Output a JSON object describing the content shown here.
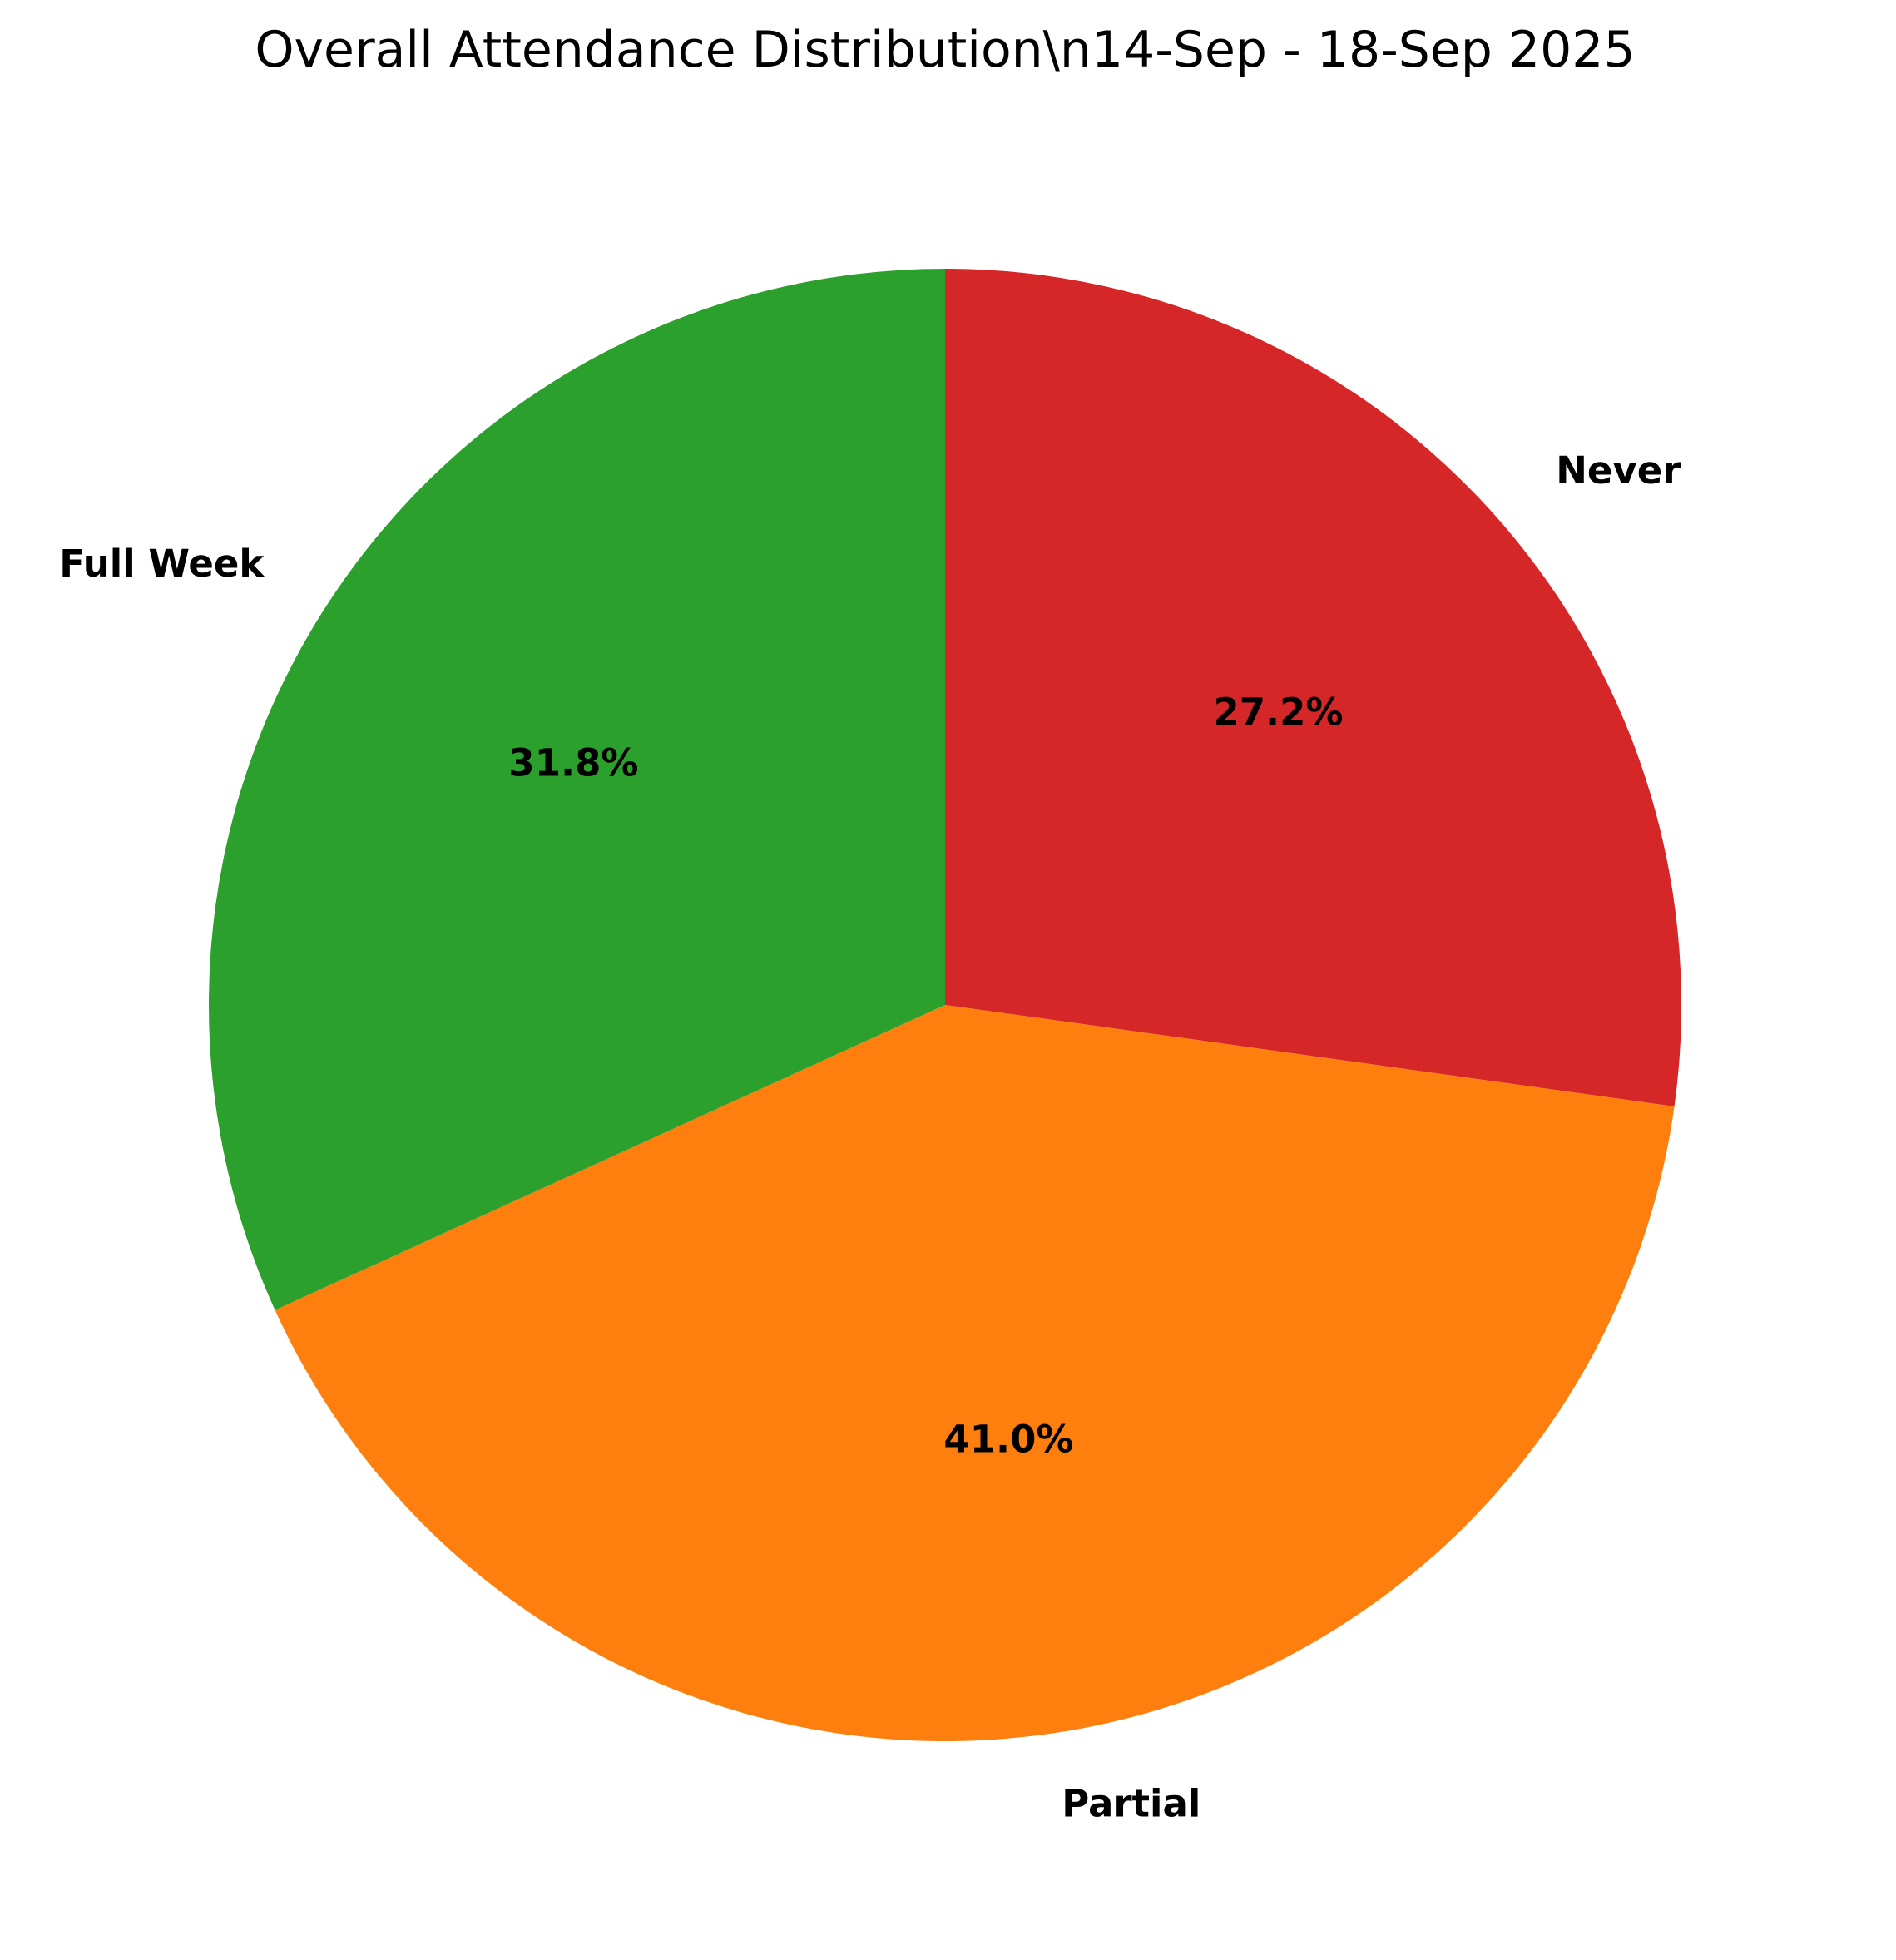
{
  "chart_data": {
    "type": "pie",
    "title": "Overall Attendance Distribution\\n14-Sep - 18-Sep 2025",
    "start_angle_deg": 90,
    "direction": "clockwise",
    "slices": [
      {
        "label": "Never",
        "value": 27.2,
        "pct_label": "27.2%",
        "color": "#d62728"
      },
      {
        "label": "Partial",
        "value": 41.0,
        "pct_label": "41.0%",
        "color": "#ff7f0e"
      },
      {
        "label": "Full Week",
        "value": 31.8,
        "pct_label": "31.8%",
        "color": "#2ca02c"
      }
    ]
  }
}
